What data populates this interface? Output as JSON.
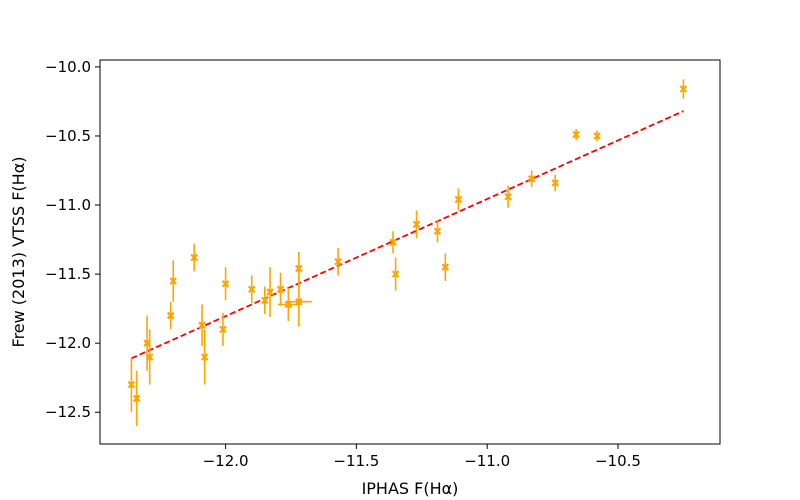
{
  "chart_data": {
    "type": "scatter",
    "xlabel": "IPHAS F(Hα)",
    "ylabel": "Frew (2013) VTSS F(Hα)",
    "xlim": [
      -12.48,
      -10.11
    ],
    "ylim": [
      -12.73,
      -9.95
    ],
    "xticks": [
      -12.0,
      -11.5,
      -11.0,
      -10.5
    ],
    "xtick_labels": [
      "−12.0",
      "−11.5",
      "−11.0",
      "−10.5"
    ],
    "yticks": [
      -10.0,
      -10.5,
      -11.0,
      -11.5,
      -12.0,
      -12.5
    ],
    "ytick_labels": [
      "−10.0",
      "−10.5",
      "−11.0",
      "−11.5",
      "−12.0",
      "−12.5"
    ],
    "grid": false,
    "colors": {
      "points": "#ffa500",
      "fit": "#ff0000"
    },
    "fit_line": {
      "style": "dashed",
      "x": [
        -12.36,
        -10.25
      ],
      "y": [
        -12.11,
        -10.32
      ]
    },
    "series": [
      {
        "marker": "x",
        "points": [
          {
            "x": -12.36,
            "y": -12.3,
            "yerr": 0.2,
            "xerr": 0.0
          },
          {
            "x": -12.34,
            "y": -12.4,
            "yerr": 0.2,
            "xerr": 0.0
          },
          {
            "x": -12.3,
            "y": -12.0,
            "yerr": 0.2,
            "xerr": 0.0
          },
          {
            "x": -12.29,
            "y": -12.1,
            "yerr": 0.2,
            "xerr": 0.0
          },
          {
            "x": -12.21,
            "y": -11.8,
            "yerr": 0.1,
            "xerr": 0.0
          },
          {
            "x": -12.2,
            "y": -11.55,
            "yerr": 0.15,
            "xerr": 0.0
          },
          {
            "x": -12.12,
            "y": -11.38,
            "yerr": 0.1,
            "xerr": 0.0
          },
          {
            "x": -12.09,
            "y": -11.87,
            "yerr": 0.15,
            "xerr": 0.0
          },
          {
            "x": -12.08,
            "y": -12.1,
            "yerr": 0.2,
            "xerr": 0.0
          },
          {
            "x": -12.01,
            "y": -11.9,
            "yerr": 0.12,
            "xerr": 0.0
          },
          {
            "x": -12.0,
            "y": -11.57,
            "yerr": 0.12,
            "xerr": 0.0
          },
          {
            "x": -11.9,
            "y": -11.61,
            "yerr": 0.1,
            "xerr": 0.0
          },
          {
            "x": -11.85,
            "y": -11.69,
            "yerr": 0.1,
            "xerr": 0.0
          },
          {
            "x": -11.83,
            "y": -11.63,
            "yerr": 0.18,
            "xerr": 0.0
          },
          {
            "x": -11.79,
            "y": -11.61,
            "yerr": 0.12,
            "xerr": 0.0
          },
          {
            "x": -11.76,
            "y": -11.72,
            "yerr": 0.12,
            "xerr": 0.04
          },
          {
            "x": -11.72,
            "y": -11.46,
            "yerr": 0.12,
            "xerr": 0.0
          },
          {
            "x": -11.72,
            "y": -11.7,
            "yerr": 0.18,
            "xerr": 0.05
          },
          {
            "x": -11.57,
            "y": -11.41,
            "yerr": 0.1,
            "xerr": 0.0
          },
          {
            "x": -11.36,
            "y": -11.27,
            "yerr": 0.08,
            "xerr": 0.0
          },
          {
            "x": -11.35,
            "y": -11.5,
            "yerr": 0.12,
            "xerr": 0.0
          },
          {
            "x": -11.27,
            "y": -11.14,
            "yerr": 0.1,
            "xerr": 0.0
          },
          {
            "x": -11.19,
            "y": -11.19,
            "yerr": 0.08,
            "xerr": 0.0
          },
          {
            "x": -11.16,
            "y": -11.45,
            "yerr": 0.1,
            "xerr": 0.0
          },
          {
            "x": -11.11,
            "y": -10.96,
            "yerr": 0.08,
            "xerr": 0.0
          },
          {
            "x": -10.92,
            "y": -10.94,
            "yerr": 0.08,
            "xerr": 0.0
          },
          {
            "x": -10.83,
            "y": -10.81,
            "yerr": 0.06,
            "xerr": 0.0
          },
          {
            "x": -10.74,
            "y": -10.84,
            "yerr": 0.06,
            "xerr": 0.0
          },
          {
            "x": -10.66,
            "y": -10.49,
            "yerr": 0.04,
            "xerr": 0.0
          },
          {
            "x": -10.58,
            "y": -10.5,
            "yerr": 0.04,
            "xerr": 0.0
          },
          {
            "x": -10.25,
            "y": -10.16,
            "yerr": 0.07,
            "xerr": 0.0
          }
        ]
      }
    ]
  }
}
